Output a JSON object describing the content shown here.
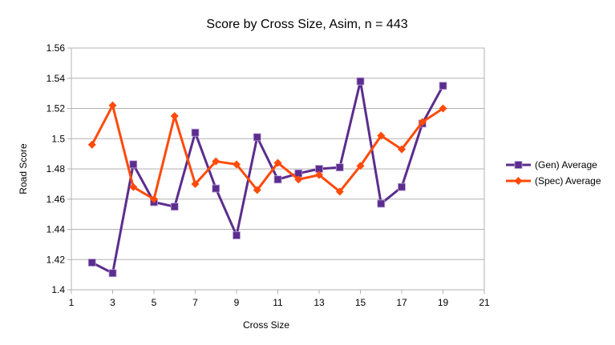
{
  "chart_data": {
    "type": "line",
    "title": "Score by Cross Size, Asim, n = 443",
    "xlabel": "Cross Size",
    "ylabel": "Road Score",
    "xlim": [
      1,
      21
    ],
    "ylim": [
      1.4,
      1.56
    ],
    "xticks": [
      "1",
      "3",
      "5",
      "7",
      "9",
      "11",
      "13",
      "15",
      "17",
      "19",
      "21"
    ],
    "yticks": [
      "1.4",
      "1.42",
      "1.44",
      "1.46",
      "1.48",
      "1.5",
      "1.52",
      "1.54",
      "1.56"
    ],
    "grid": "horizontal",
    "legend_position": "right",
    "x": [
      2,
      3,
      4,
      5,
      6,
      7,
      8,
      9,
      10,
      11,
      12,
      13,
      14,
      15,
      16,
      17,
      18,
      19
    ],
    "series": [
      {
        "name": "(Gen) Average",
        "color": "#5b2d8e",
        "marker": "square",
        "values": [
          1.418,
          1.411,
          1.483,
          1.458,
          1.455,
          1.504,
          1.467,
          1.436,
          1.501,
          1.473,
          1.477,
          1.48,
          1.481,
          1.538,
          1.457,
          1.468,
          1.51,
          1.535
        ]
      },
      {
        "name": "(Spec) Average",
        "color": "#ff4a0a",
        "marker": "diamond",
        "values": [
          1.496,
          1.522,
          1.468,
          1.46,
          1.515,
          1.47,
          1.485,
          1.483,
          1.466,
          1.484,
          1.473,
          1.476,
          1.465,
          1.482,
          1.502,
          1.493,
          1.511,
          1.52
        ]
      }
    ]
  }
}
